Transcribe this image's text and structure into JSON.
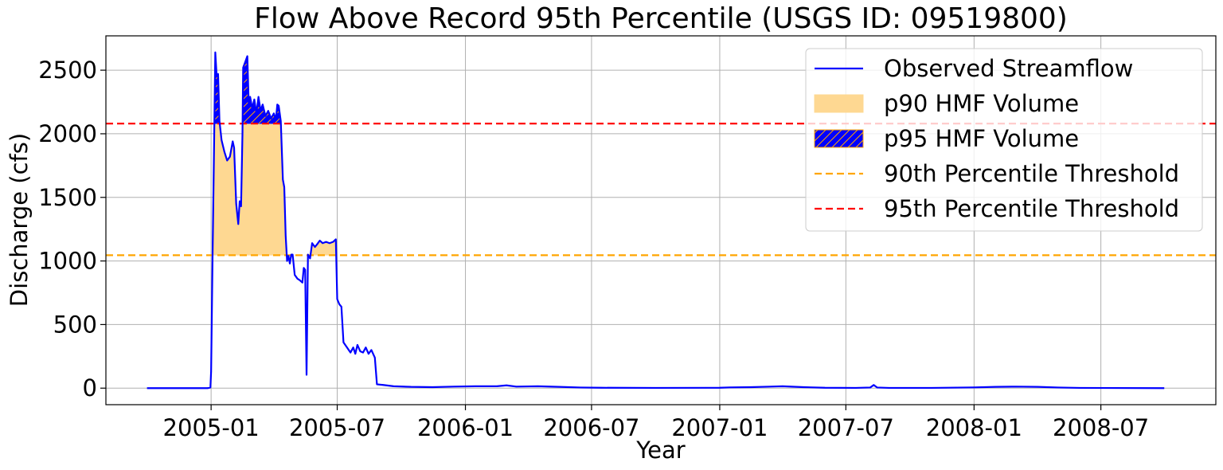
{
  "chart_data": {
    "type": "line",
    "title": "Flow Above Record 95th Percentile (USGS ID: 09519800)",
    "xlabel": "Year",
    "ylabel": "Discharge (cfs)",
    "xlim": [
      "2004-08-03",
      "2008-12-13"
    ],
    "ylim": [
      -130,
      2770
    ],
    "x_ticks": [
      "2005-01",
      "2005-07",
      "2006-01",
      "2006-07",
      "2007-01",
      "2007-07",
      "2008-01",
      "2008-07"
    ],
    "y_ticks": [
      0,
      500,
      1000,
      1500,
      2000,
      2500
    ],
    "grid": true,
    "legend_position": "top-right",
    "thresholds": {
      "p90": 1045,
      "p95": 2080
    },
    "colors": {
      "streamflow": "#0000ff",
      "p90_fill": "#fed892",
      "p90_edge": "#ffa500",
      "p95_fill": "#0000ff",
      "p95_hatch": "#ffa500",
      "p90_line": "#ffa500",
      "p95_line": "#ff0000",
      "grid": "#b0b0b0"
    },
    "series": [
      {
        "name": "Observed Streamflow",
        "points": [
          [
            "2004-10-01",
            0
          ],
          [
            "2004-12-01",
            0
          ],
          [
            "2004-12-27",
            0
          ],
          [
            "2004-12-31",
            5
          ],
          [
            "2005-01-01",
            130
          ],
          [
            "2005-01-03",
            1000
          ],
          [
            "2005-01-05",
            1800
          ],
          [
            "2005-01-07",
            2640
          ],
          [
            "2005-01-09",
            2450
          ],
          [
            "2005-01-11",
            2470
          ],
          [
            "2005-01-13",
            2100
          ],
          [
            "2005-01-16",
            1950
          ],
          [
            "2005-01-20",
            1860
          ],
          [
            "2005-01-24",
            1790
          ],
          [
            "2005-01-28",
            1820
          ],
          [
            "2005-02-01",
            1940
          ],
          [
            "2005-02-03",
            1890
          ],
          [
            "2005-02-06",
            1450
          ],
          [
            "2005-02-09",
            1290
          ],
          [
            "2005-02-11",
            1470
          ],
          [
            "2005-02-13",
            1430
          ],
          [
            "2005-02-15",
            2000
          ],
          [
            "2005-02-16",
            2520
          ],
          [
            "2005-02-18",
            2550
          ],
          [
            "2005-02-20",
            2580
          ],
          [
            "2005-02-22",
            2610
          ],
          [
            "2005-02-24",
            2230
          ],
          [
            "2005-02-26",
            2290
          ],
          [
            "2005-03-01",
            2200
          ],
          [
            "2005-03-04",
            2270
          ],
          [
            "2005-03-07",
            2160
          ],
          [
            "2005-03-10",
            2290
          ],
          [
            "2005-03-13",
            2180
          ],
          [
            "2005-03-16",
            2230
          ],
          [
            "2005-03-20",
            2140
          ],
          [
            "2005-03-24",
            2180
          ],
          [
            "2005-03-28",
            2120
          ],
          [
            "2005-04-01",
            2160
          ],
          [
            "2005-04-04",
            2110
          ],
          [
            "2005-04-06",
            2230
          ],
          [
            "2005-04-08",
            2220
          ],
          [
            "2005-04-11",
            2100
          ],
          [
            "2005-04-14",
            1640
          ],
          [
            "2005-04-16",
            1580
          ],
          [
            "2005-04-18",
            1200
          ],
          [
            "2005-04-20",
            1000
          ],
          [
            "2005-04-22",
            1040
          ],
          [
            "2005-04-24",
            980
          ],
          [
            "2005-04-26",
            1050
          ],
          [
            "2005-04-28",
            1050
          ],
          [
            "2005-05-01",
            890
          ],
          [
            "2005-05-05",
            860
          ],
          [
            "2005-05-08",
            850
          ],
          [
            "2005-05-12",
            830
          ],
          [
            "2005-05-14",
            945
          ],
          [
            "2005-05-16",
            930
          ],
          [
            "2005-05-18",
            105
          ],
          [
            "2005-05-20",
            1050
          ],
          [
            "2005-05-23",
            1020
          ],
          [
            "2005-05-26",
            1140
          ],
          [
            "2005-05-30",
            1110
          ],
          [
            "2005-06-02",
            1130
          ],
          [
            "2005-06-06",
            1160
          ],
          [
            "2005-06-10",
            1140
          ],
          [
            "2005-06-15",
            1150
          ],
          [
            "2005-06-20",
            1140
          ],
          [
            "2005-06-25",
            1150
          ],
          [
            "2005-06-29",
            1170
          ],
          [
            "2005-07-01",
            700
          ],
          [
            "2005-07-04",
            660
          ],
          [
            "2005-07-07",
            640
          ],
          [
            "2005-07-10",
            360
          ],
          [
            "2005-07-15",
            320
          ],
          [
            "2005-07-20",
            280
          ],
          [
            "2005-07-24",
            320
          ],
          [
            "2005-07-27",
            270
          ],
          [
            "2005-07-30",
            340
          ],
          [
            "2005-08-03",
            290
          ],
          [
            "2005-08-07",
            280
          ],
          [
            "2005-08-11",
            320
          ],
          [
            "2005-08-15",
            270
          ],
          [
            "2005-08-19",
            300
          ],
          [
            "2005-08-24",
            240
          ],
          [
            "2005-08-27",
            30
          ],
          [
            "2005-09-05",
            25
          ],
          [
            "2005-09-20",
            15
          ],
          [
            "2005-10-15",
            10
          ],
          [
            "2005-11-15",
            8
          ],
          [
            "2005-12-15",
            12
          ],
          [
            "2006-01-15",
            15
          ],
          [
            "2006-02-15",
            15
          ],
          [
            "2006-03-01",
            22
          ],
          [
            "2006-03-15",
            12
          ],
          [
            "2006-04-15",
            15
          ],
          [
            "2006-05-15",
            10
          ],
          [
            "2006-06-15",
            5
          ],
          [
            "2006-07-15",
            3
          ],
          [
            "2006-10-01",
            2
          ],
          [
            "2007-01-01",
            3
          ],
          [
            "2007-01-15",
            6
          ],
          [
            "2007-02-15",
            8
          ],
          [
            "2007-03-15",
            12
          ],
          [
            "2007-04-01",
            15
          ],
          [
            "2007-05-01",
            8
          ],
          [
            "2007-06-01",
            3
          ],
          [
            "2007-07-15",
            2
          ],
          [
            "2007-08-05",
            5
          ],
          [
            "2007-08-10",
            25
          ],
          [
            "2007-08-15",
            5
          ],
          [
            "2007-09-01",
            2
          ],
          [
            "2007-11-01",
            2
          ],
          [
            "2008-01-01",
            6
          ],
          [
            "2008-02-01",
            10
          ],
          [
            "2008-03-01",
            12
          ],
          [
            "2008-04-01",
            10
          ],
          [
            "2008-05-01",
            5
          ],
          [
            "2008-06-01",
            2
          ],
          [
            "2008-09-30",
            0
          ]
        ]
      }
    ],
    "legend": [
      {
        "label": "Observed Streamflow",
        "kind": "line",
        "color": "#0000ff"
      },
      {
        "label": "p90 HMF Volume",
        "kind": "fill",
        "color": "#fed892"
      },
      {
        "label": "p95 HMF Volume",
        "kind": "hatch",
        "color": "#0000ff"
      },
      {
        "label": "90th Percentile Threshold",
        "kind": "dashed",
        "color": "#ffa500"
      },
      {
        "label": "95th Percentile Threshold",
        "kind": "dashed",
        "color": "#ff0000"
      }
    ]
  }
}
